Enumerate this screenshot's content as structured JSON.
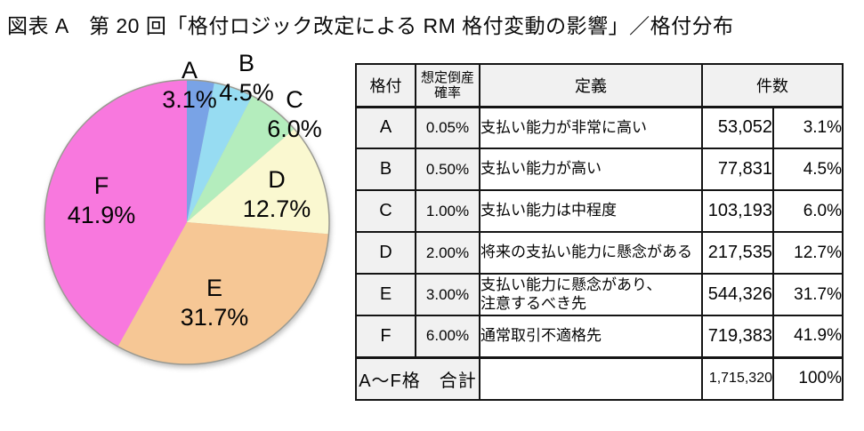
{
  "title": "図表 A　第 20 回「格付ロジック改定による RM 格付変動の影響」／格付分布",
  "chart_data": {
    "type": "pie",
    "start_angle_deg": 0,
    "direction": "clockwise",
    "categories": [
      "A",
      "B",
      "C",
      "D",
      "E",
      "F"
    ],
    "values": [
      3.1,
      4.5,
      6.0,
      12.7,
      31.7,
      41.9
    ],
    "slices": [
      {
        "label": "A",
        "percent_label": "3.1%",
        "value": 3.1,
        "color": "#79a3e6"
      },
      {
        "label": "B",
        "percent_label": "4.5%",
        "value": 4.5,
        "color": "#97dcf2"
      },
      {
        "label": "C",
        "percent_label": "6.0%",
        "value": 6.0,
        "color": "#b4edbd"
      },
      {
        "label": "D",
        "percent_label": "12.7%",
        "value": 12.7,
        "color": "#faf8d0"
      },
      {
        "label": "E",
        "percent_label": "31.7%",
        "value": 31.7,
        "color": "#f6c795"
      },
      {
        "label": "F",
        "percent_label": "41.9%",
        "value": 41.9,
        "color": "#f878de"
      }
    ],
    "outline_color": "#9a9a92"
  },
  "table": {
    "headers": {
      "rating": "格付",
      "probability": "想定倒産\n確率",
      "definition": "定義",
      "count": "件数"
    },
    "rows": [
      {
        "rating": "A",
        "probability": "0.05%",
        "definition": "支払い能力が非常に高い",
        "count": "53,052",
        "percent": "3.1%"
      },
      {
        "rating": "B",
        "probability": "0.50%",
        "definition": "支払い能力が高い",
        "count": "77,831",
        "percent": "4.5%"
      },
      {
        "rating": "C",
        "probability": "1.00%",
        "definition": "支払い能力は中程度",
        "count": "103,193",
        "percent": "6.0%"
      },
      {
        "rating": "D",
        "probability": "2.00%",
        "definition": "将来の支払い能力に懸念がある",
        "count": "217,535",
        "percent": "12.7%"
      },
      {
        "rating": "E",
        "probability": "3.00%",
        "definition": "支払い能力に懸念があり、\n注意するべき先",
        "count": "544,326",
        "percent": "31.7%"
      },
      {
        "rating": "F",
        "probability": "6.00%",
        "definition": "通常取引不適格先",
        "count": "719,383",
        "percent": "41.9%"
      }
    ],
    "total": {
      "label": "A〜F格　合計",
      "count": "1,715,320",
      "percent": "100%"
    }
  }
}
